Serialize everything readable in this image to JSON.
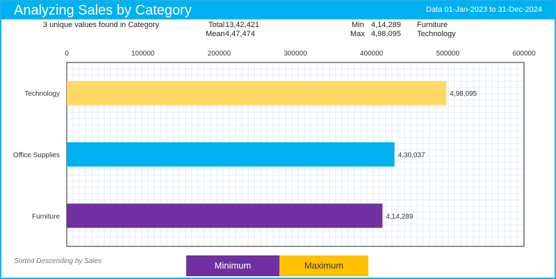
{
  "header": {
    "title": "Analyzing Sales by Category",
    "date_range": "Data 01-Jan-2023 to 31-Dec-2024"
  },
  "stats": {
    "unique_text": "3 unique values found in Category",
    "total_label": "Total",
    "total_value": "13,42,421",
    "mean_label": "Mean",
    "mean_value": "4,47,474",
    "min_label": "Min",
    "min_value": "4,14,289",
    "min_category": "Furniture",
    "max_label": "Max",
    "max_value": "4,98,095",
    "max_category": "Technology"
  },
  "footer": {
    "sort_note": "Sorted Descending by Sales",
    "legend_min": "Minimum",
    "legend_max": "Maximum"
  },
  "colors": {
    "header": "#00b0f0",
    "technology": "#ffd966",
    "office_supplies": "#00b0f0",
    "furniture": "#7030a0",
    "legend_min": "#7030a0",
    "legend_max": "#ffc000",
    "grid": "#c7e3f5"
  },
  "chart_data": {
    "type": "bar",
    "orientation": "horizontal",
    "categories": [
      "Technology",
      "Office Supplies",
      "Furniture"
    ],
    "values": [
      498095,
      430037,
      414289
    ],
    "data_labels": [
      "4,98,095",
      "4,30,037",
      "4,14,289"
    ],
    "xlim": [
      0,
      600000
    ],
    "x_ticks": [
      0,
      100000,
      200000,
      300000,
      400000,
      500000,
      600000
    ],
    "x_tick_labels": [
      "0",
      "100000",
      "200000",
      "300000",
      "400000",
      "500000",
      "600000"
    ],
    "x_axis_position": "top",
    "grid": true
  }
}
